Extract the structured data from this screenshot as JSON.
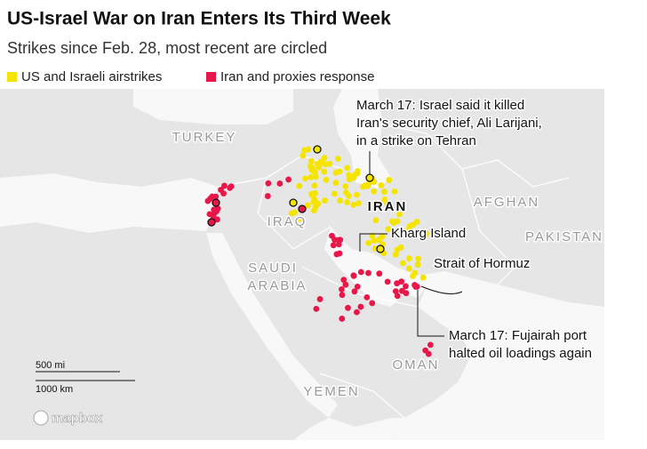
{
  "header": {
    "title": "US-Israel War on Iran Enters Its Third Week",
    "subtitle": "Strikes since Feb. 28, most recent are circled"
  },
  "legend": [
    {
      "label": "US and Israeli airstrikes",
      "color": "#f5e400"
    },
    {
      "label": "Iran and proxies response",
      "color": "#e8174a"
    }
  ],
  "map": {
    "labels": [
      "TURKEY",
      "IRAQ",
      "IRAN",
      "AFGHAN",
      "PAKISTAN",
      "SAUDI",
      "ARABIA",
      "OMAN",
      "YEMEN"
    ],
    "annotations": [
      {
        "lines": [
          "March 17: Israel said it killed",
          "Iran's security chief, Ali Larijani,",
          "in a strike on Tehran"
        ]
      },
      {
        "lines": [
          "Kharg Island"
        ]
      },
      {
        "lines": [
          "Strait of Hormuz"
        ]
      },
      {
        "lines": [
          "March 17: Fujairah port",
          "halted oil loadings again"
        ]
      }
    ],
    "scale": [
      "500 mi",
      "1000 km"
    ],
    "attribution": "mapbox"
  }
}
